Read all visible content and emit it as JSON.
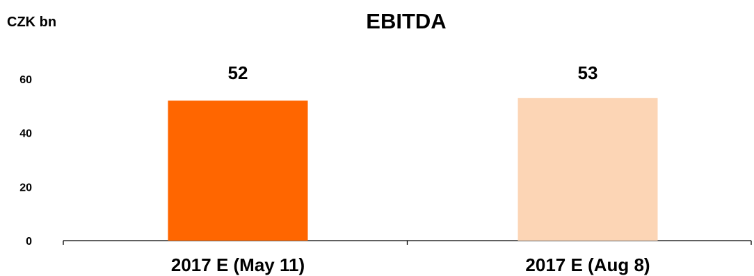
{
  "chart_data": {
    "type": "bar",
    "title": "EBITDA",
    "unit_label": "CZK bn",
    "categories": [
      "2017 E (May 11)",
      "2017 E (Aug 8)"
    ],
    "values": [
      52,
      53
    ],
    "data_labels": [
      "52",
      "53"
    ],
    "bar_colors": [
      "#ff6600",
      "#fcd5b5"
    ],
    "y_ticks": [
      0,
      20,
      40,
      60
    ],
    "ylim": [
      0,
      60
    ],
    "grid": false,
    "legend": "none"
  }
}
